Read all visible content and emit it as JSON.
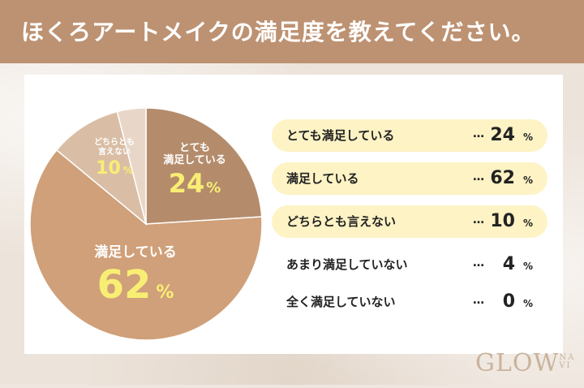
{
  "header": {
    "title": "ほくろアートメイクの満足度を教えてください。"
  },
  "colors": {
    "header_bg": "#bd9272",
    "pie_very_satisfied": "#b48c6c",
    "pie_satisfied": "#cfa079",
    "pie_neutral": "#d9bda5",
    "pie_slightly": "#e8d7c8",
    "pie_label_value": "#f9ee74",
    "legend_highlight": "#fdf3c5"
  },
  "pie_labels": {
    "very_satisfied": {
      "line1": "とても",
      "line2": "満足している",
      "value": "24",
      "unit": "%"
    },
    "satisfied": {
      "line1": "満足している",
      "value": "62",
      "unit": "%"
    },
    "neutral": {
      "line1": "どちらとも",
      "line2": "言えない",
      "value": "10",
      "unit": "%"
    }
  },
  "legend": {
    "dots": "…",
    "unit": "%",
    "items": [
      {
        "label": "とても満足している",
        "value": "24",
        "highlight": true
      },
      {
        "label": "満足している",
        "value": "62",
        "highlight": true
      },
      {
        "label": "どちらとも言えない",
        "value": "10",
        "highlight": true
      },
      {
        "label": "あまり満足していない",
        "value": "4",
        "highlight": false
      },
      {
        "label": "全く満足していない",
        "value": "0",
        "highlight": false
      }
    ]
  },
  "logo": {
    "main": "GLOW",
    "sub1": "NA",
    "sub2": "VI"
  },
  "chart_data": {
    "type": "pie",
    "title": "ほくろアートメイクの満足度を教えてください。",
    "unit": "%",
    "categories": [
      "とても満足している",
      "満足している",
      "どちらとも言えない",
      "あまり満足していない",
      "全く満足していない"
    ],
    "values": [
      24,
      62,
      10,
      4,
      0
    ]
  }
}
